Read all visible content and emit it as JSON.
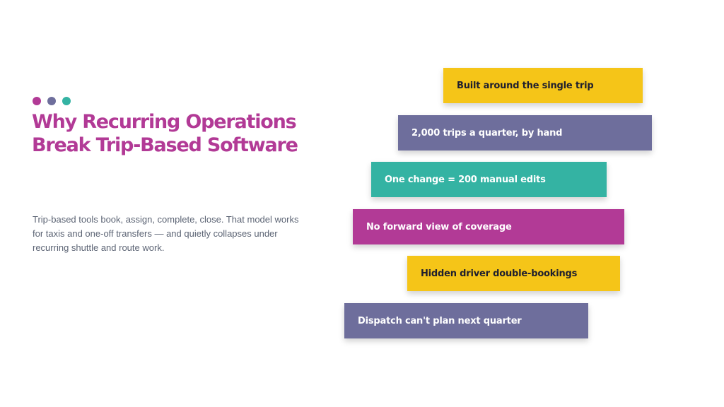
{
  "colors": {
    "magenta": "#b23a96",
    "purple": "#6e6e9c",
    "teal": "#34b3a3",
    "yellow": "#f5c518",
    "dark_text": "#1f1f2e",
    "light_text": "#ffffff",
    "body_text": "#5c6474"
  },
  "slide": {
    "title_lines": [
      "Why Recurring Operations",
      "Break Trip-Based Software"
    ],
    "description": "Trip-based tools book, assign, complete, close. That model works for taxis and one-off transfers — and quietly collapses under recurring shuttle and route work."
  },
  "cards": [
    {
      "label": "Built around the single trip",
      "color": "yellow"
    },
    {
      "label": "2,000 trips a quarter, by hand",
      "color": "purple"
    },
    {
      "label": "One change = 200 manual edits",
      "color": "teal"
    },
    {
      "label": "No forward view of coverage",
      "color": "magenta"
    },
    {
      "label": "Hidden driver double-bookings",
      "color": "yellow"
    },
    {
      "label": "Dispatch can't plan next quarter",
      "color": "purple"
    }
  ]
}
